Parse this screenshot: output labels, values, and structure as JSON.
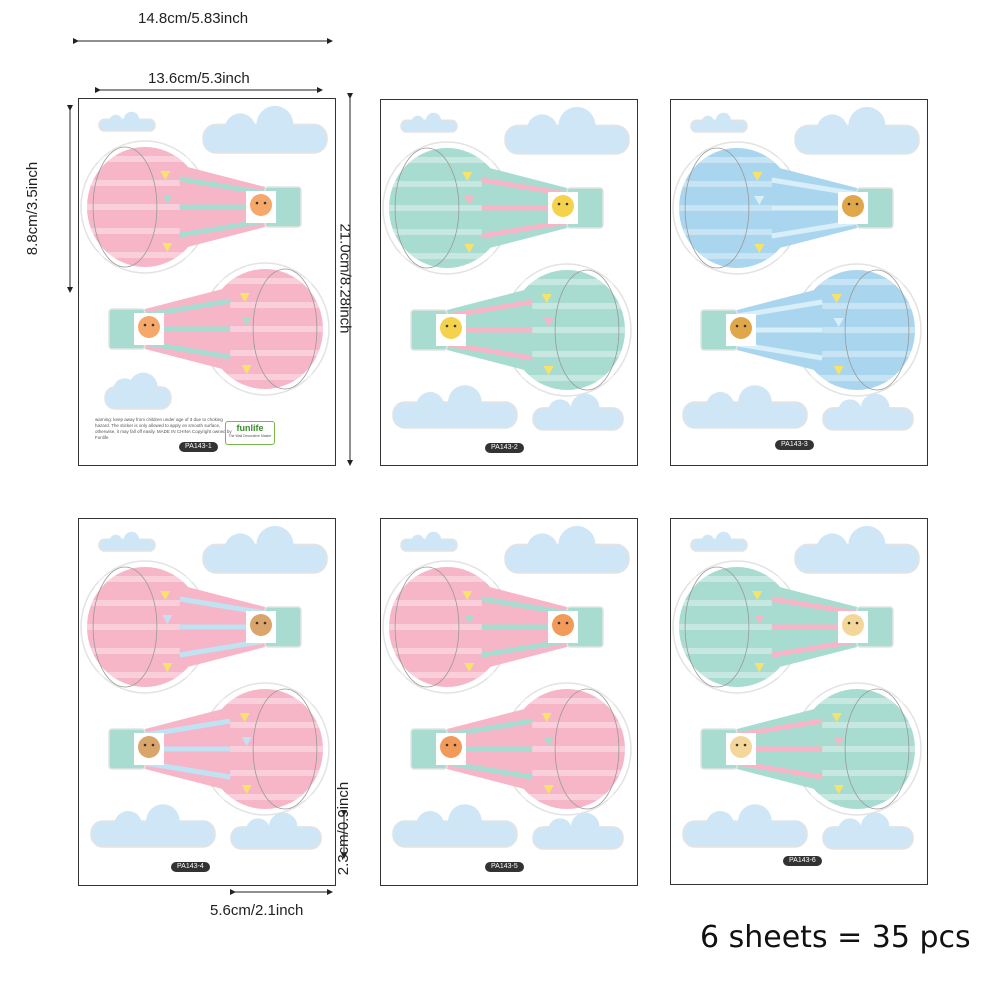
{
  "dimensions": {
    "sheet_width_outer": "14.8cm/5.83inch",
    "sheet_width_inner": "13.6cm/5.3inch",
    "balloon_height": "8.8cm/3.5inch",
    "sheet_height": "21.0cm/8.28inch",
    "cloud_height": "2.3cm/0.9inch",
    "cloud_width": "5.6cm/2.1inch"
  },
  "summary": "6 sheets = 35 pcs",
  "sheets": [
    {
      "code": "PA143-1",
      "colors": [
        "#f6b6c8",
        "#a8dcd0"
      ],
      "animal": "tiger"
    },
    {
      "code": "PA143-2",
      "colors": [
        "#a8dcd0",
        "#f6b6c8"
      ],
      "animal": "giraffe"
    },
    {
      "code": "PA143-3",
      "colors": [
        "#a9d6ee",
        "#d8eef8"
      ],
      "animal": "lion"
    },
    {
      "code": "PA143-4",
      "colors": [
        "#f6b6c8",
        "#bfe3f3"
      ],
      "animal": "bear"
    },
    {
      "code": "PA143-5",
      "colors": [
        "#f6b6c8",
        "#a8dcd0"
      ],
      "animal": "fox"
    },
    {
      "code": "PA143-6",
      "colors": [
        "#a8dcd0",
        "#f6b6c8"
      ],
      "animal": "bunny"
    }
  ],
  "warning_text": "warning: keep away from children under age of 3 due to choking hazard. The sticker is only allowed to apply on smooth surface, otherwise, it may fall off easily. MADE IN CHINA Copyright owned by Funlife",
  "logo": {
    "text": "funlife",
    "tagline": "The Wall Decorative Master"
  },
  "colors": {
    "cloud": "#cfe6f6",
    "yellow_flag": "#f7e36a",
    "basket_mint": "#a8dcd0"
  }
}
